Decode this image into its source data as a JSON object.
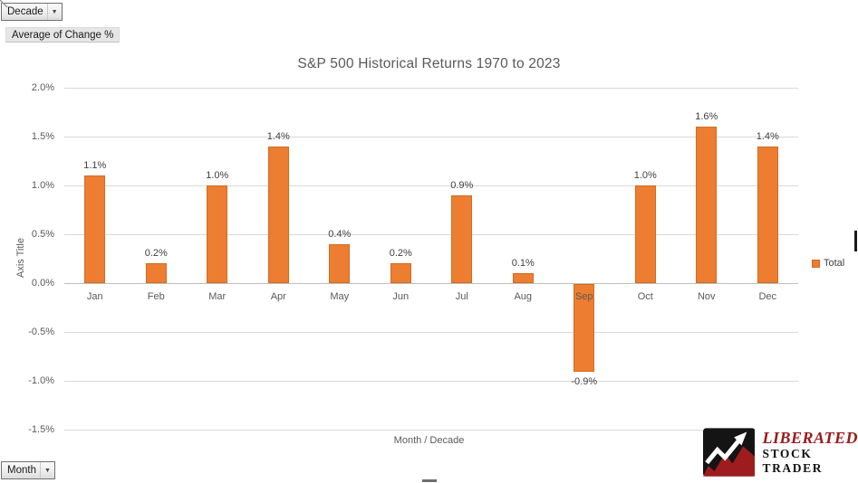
{
  "field_buttons": {
    "decade": {
      "label": "Decade",
      "arrow": "▼"
    },
    "value": {
      "label": "Average of Change %"
    },
    "month": {
      "label": "Month",
      "arrow": "▼"
    }
  },
  "chart": {
    "title": "S&P 500 Historical Returns 1970 to 2023",
    "y_axis_title": "Axis Title",
    "x_axis_title": "Month / Decade",
    "legend_label": "Total"
  },
  "chart_data": {
    "type": "bar",
    "title": "S&P 500 Historical Returns 1970 to 2023",
    "xlabel": "Month / Decade",
    "ylabel": "Axis Title",
    "categories": [
      "Jan",
      "Feb",
      "Mar",
      "Apr",
      "May",
      "Jun",
      "Jul",
      "Aug",
      "Sep",
      "Oct",
      "Nov",
      "Dec"
    ],
    "series": [
      {
        "name": "Total",
        "values": [
          1.1,
          0.2,
          1.0,
          1.4,
          0.4,
          0.2,
          0.9,
          0.1,
          -0.9,
          1.0,
          1.6,
          1.4
        ]
      }
    ],
    "data_labels": [
      "1.1%",
      "0.2%",
      "1.0%",
      "1.4%",
      "0.4%",
      "0.2%",
      "0.9%",
      "0.1%",
      "-0.9%",
      "1.0%",
      "1.6%",
      "1.4%"
    ],
    "y_ticks": [
      "2.0%",
      "1.5%",
      "1.0%",
      "0.5%",
      "0.0%",
      "-0.5%",
      "-1.0%",
      "-1.5%"
    ],
    "ylim": [
      -1.5,
      2.0
    ],
    "grid": true,
    "legend_position": "right",
    "bar_color": "#ED7D31",
    "bar_border_color": "#D26C20"
  },
  "logo": {
    "line1": "LIBERATED",
    "line2": "STOCK TRADER"
  }
}
